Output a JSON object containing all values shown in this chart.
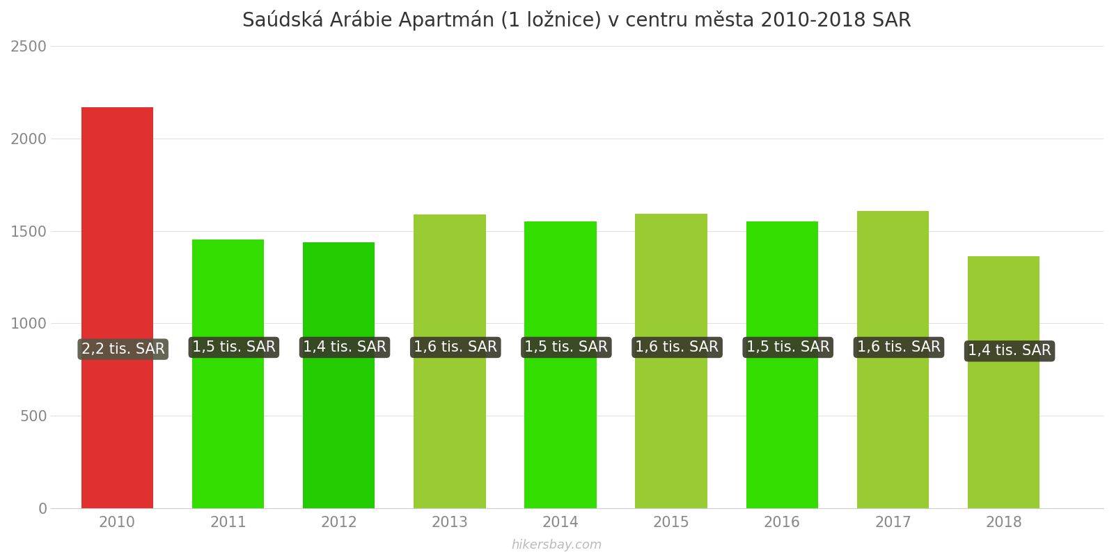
{
  "title": "Saúdská Arábie Apartmán (1 ložnice) v centru města 2010-2018 SAR",
  "years": [
    2010,
    2011,
    2012,
    2013,
    2014,
    2015,
    2016,
    2017,
    2018
  ],
  "values": [
    2170,
    1455,
    1440,
    1590,
    1553,
    1595,
    1550,
    1610,
    1362
  ],
  "bar_colors": [
    "#e03030",
    "#33dd00",
    "#22cc00",
    "#99cc33",
    "#33dd00",
    "#99cc33",
    "#33dd00",
    "#99cc33",
    "#99cc33"
  ],
  "labels": [
    "2,2 tis. SAR",
    "1,5 tis. SAR",
    "1,4 tis. SAR",
    "1,6 tis. SAR",
    "1,5 tis. SAR",
    "1,6 tis. SAR",
    "1,5 tis. SAR",
    "1,6 tis. SAR",
    "1,4 tis. SAR"
  ],
  "label_y_positions": [
    860,
    870,
    870,
    870,
    870,
    870,
    870,
    870,
    850
  ],
  "ylim": [
    0,
    2500
  ],
  "yticks": [
    0,
    500,
    1000,
    1500,
    2000,
    2500
  ],
  "background_color": "#ffffff",
  "label_box_colors": [
    "#555544",
    "#3a3a2a",
    "#3a3a2a",
    "#3a3a2a",
    "#3a3a2a",
    "#3a3a2a",
    "#3a3a2a",
    "#3a3a2a",
    "#3a3a2a"
  ],
  "label_text_color": "#ffffff",
  "title_fontsize": 20,
  "tick_fontsize": 15,
  "label_fontsize": 15,
  "watermark": "hikersbay.com",
  "bar_width": 0.65
}
